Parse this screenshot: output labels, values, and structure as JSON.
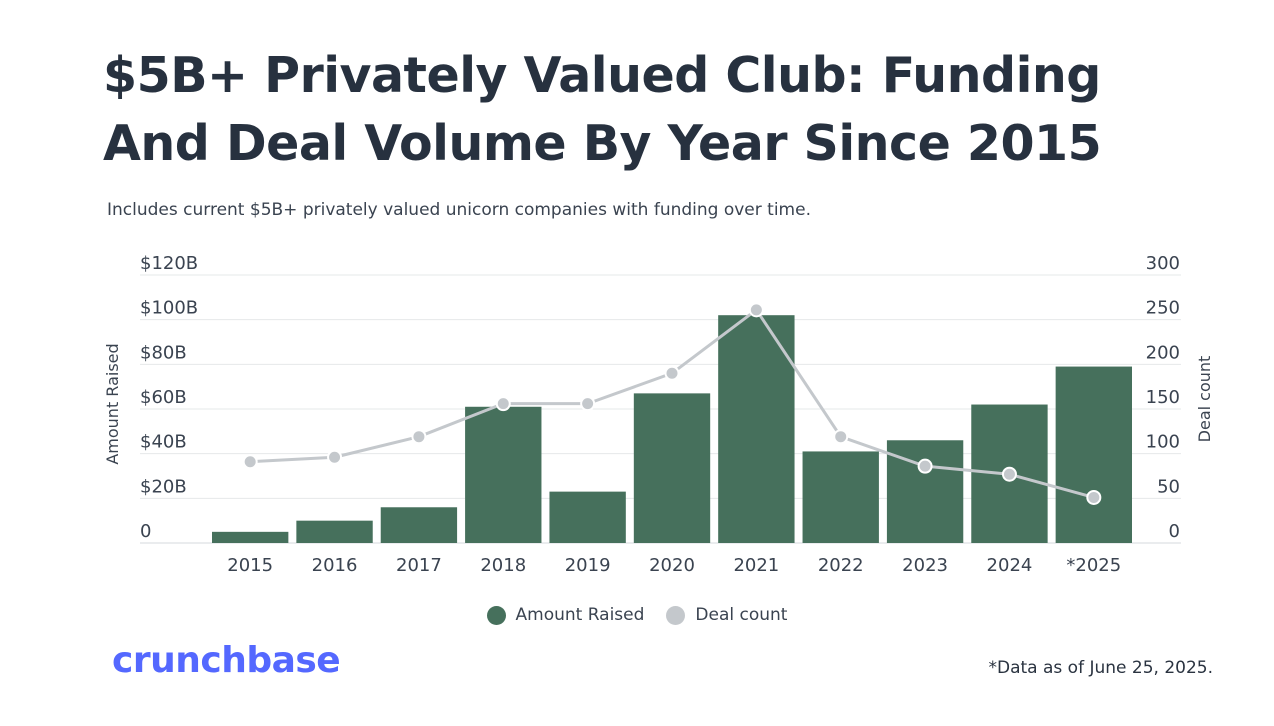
{
  "header": {
    "title": "$5B+ Privately Valued Club: Funding And Deal Volume By Year Since 2015",
    "subtitle": "Includes current $5B+ privately valued unicorn companies with funding over time."
  },
  "chart_data": {
    "type": "bar",
    "categories": [
      "2015",
      "2016",
      "2017",
      "2018",
      "2019",
      "2020",
      "2021",
      "2022",
      "2023",
      "2024",
      "*2025"
    ],
    "series": [
      {
        "name": "Amount Raised",
        "type": "bar",
        "axis": "left",
        "color": "#46705c",
        "values": [
          5,
          10,
          16,
          61,
          23,
          67,
          102,
          41,
          46,
          62,
          79
        ]
      },
      {
        "name": "Deal count",
        "type": "line",
        "axis": "right",
        "color": "#c4c8cc",
        "values": [
          91,
          96,
          119,
          156,
          156,
          190,
          261,
          119,
          86,
          77,
          51
        ]
      }
    ],
    "ylabel": "Amount Raised",
    "y2label": "Deal count",
    "ylim": [
      0,
      120
    ],
    "y2lim": [
      0,
      300
    ],
    "yticks": [
      "0",
      "$20B",
      "$40B",
      "$60B",
      "$80B",
      "$100B",
      "$120B"
    ],
    "y2ticks": [
      "0",
      "50",
      "100",
      "150",
      "200",
      "250",
      "300"
    ],
    "grid": true,
    "legend_position": "bottom"
  },
  "legend": {
    "items": [
      {
        "label": "Amount Raised",
        "color": "#46705c"
      },
      {
        "label": "Deal count",
        "color": "#c4c8cc"
      }
    ]
  },
  "footer": {
    "logo_text": "crunchbase",
    "footnote": "*Data as of June 25, 2025."
  }
}
